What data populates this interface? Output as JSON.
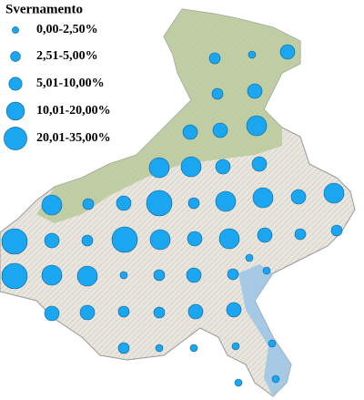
{
  "legend": {
    "title": "Svernamento",
    "items": [
      "0,00-2,50%",
      "2,51-5,00%",
      "5,01-10,00%",
      "10,01-20,00%",
      "20,01-35,00%"
    ]
  }
}
